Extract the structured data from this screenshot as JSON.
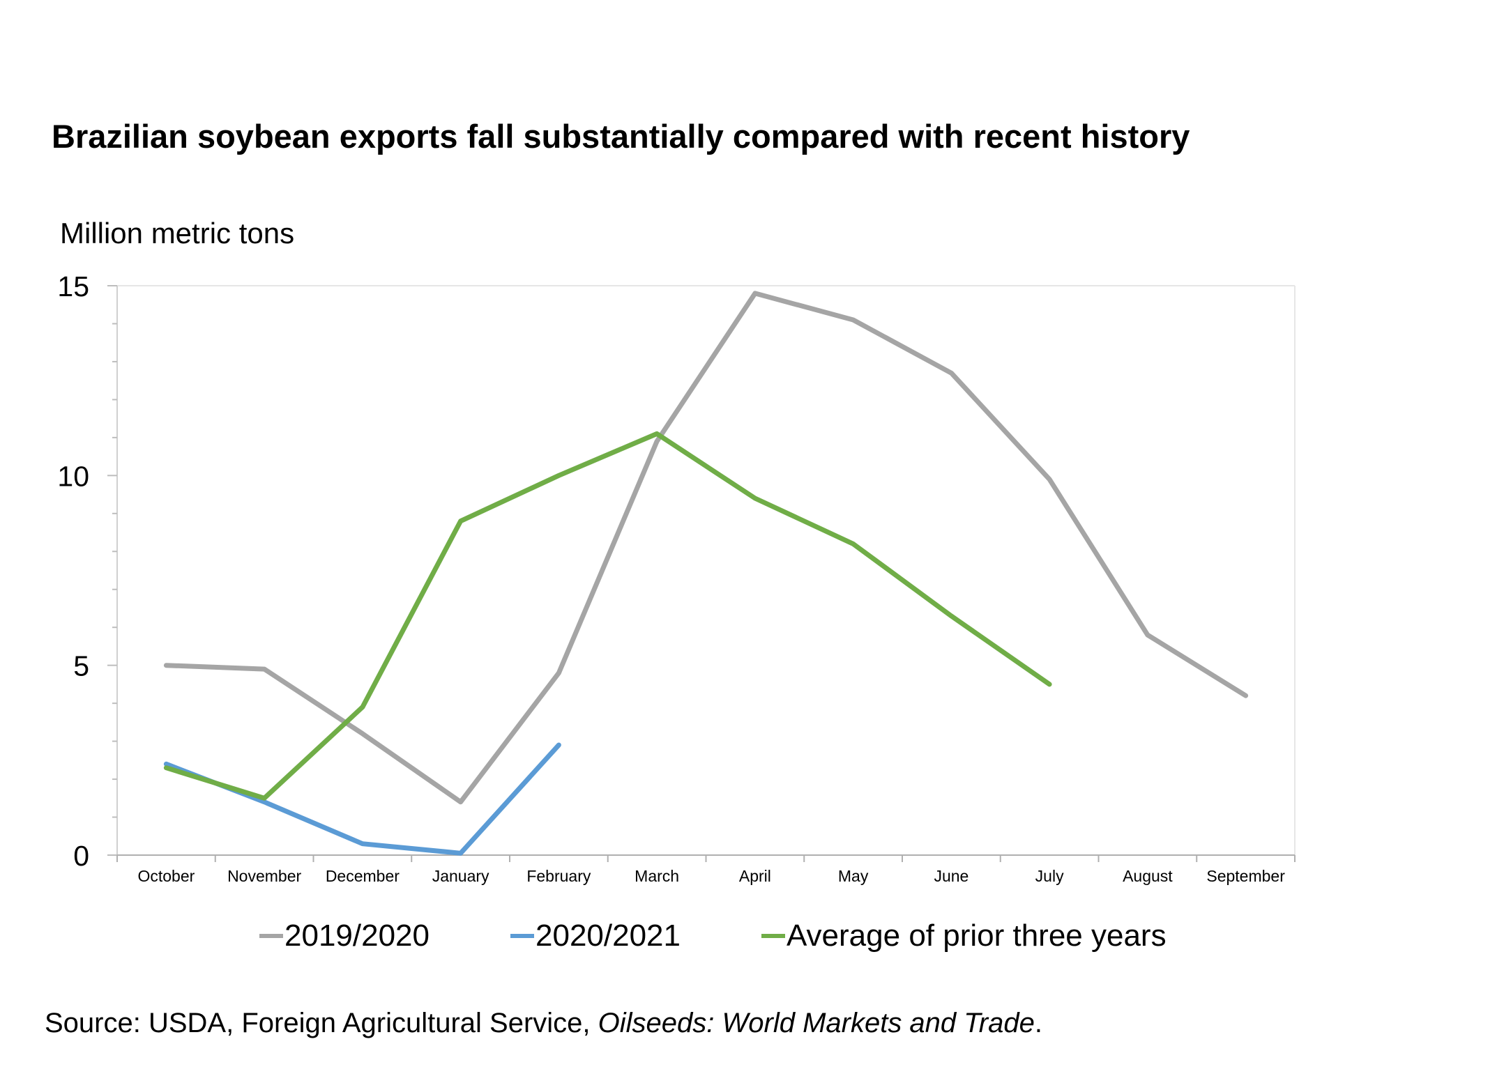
{
  "title": "Brazilian soybean exports fall substantially compared with recent history",
  "source": {
    "prefix": "Source: USDA, Foreign Agricultural Service, ",
    "publication": "Oilseeds: World Markets and Trade",
    "suffix": "."
  },
  "chart_data": {
    "type": "line",
    "title": "Brazilian soybean exports fall substantially compared with recent history",
    "ylabel": "Million metric tons",
    "xlabel": "",
    "ylim": [
      0,
      15
    ],
    "yticks": [
      0,
      5,
      10,
      15
    ],
    "grid": false,
    "legend": "bottom",
    "categories": [
      "October",
      "November",
      "December",
      "January",
      "February",
      "March",
      "April",
      "May",
      "June",
      "July",
      "August",
      "September"
    ],
    "series": [
      {
        "name": "2019/2020",
        "color": "#a5a5a5",
        "values": [
          5.0,
          4.9,
          3.2,
          1.4,
          4.8,
          10.9,
          14.8,
          14.1,
          12.7,
          9.9,
          5.8,
          4.2
        ]
      },
      {
        "name": "2020/2021",
        "color": "#5b9bd5",
        "values": [
          2.4,
          1.4,
          0.3,
          0.05,
          2.9,
          null,
          null,
          null,
          null,
          null,
          null,
          null
        ]
      },
      {
        "name": "Average of prior three years",
        "color": "#70ad47",
        "values": [
          2.3,
          1.5,
          3.9,
          8.8,
          10.0,
          11.1,
          9.4,
          8.2,
          6.3,
          4.5,
          null,
          null
        ]
      }
    ]
  }
}
